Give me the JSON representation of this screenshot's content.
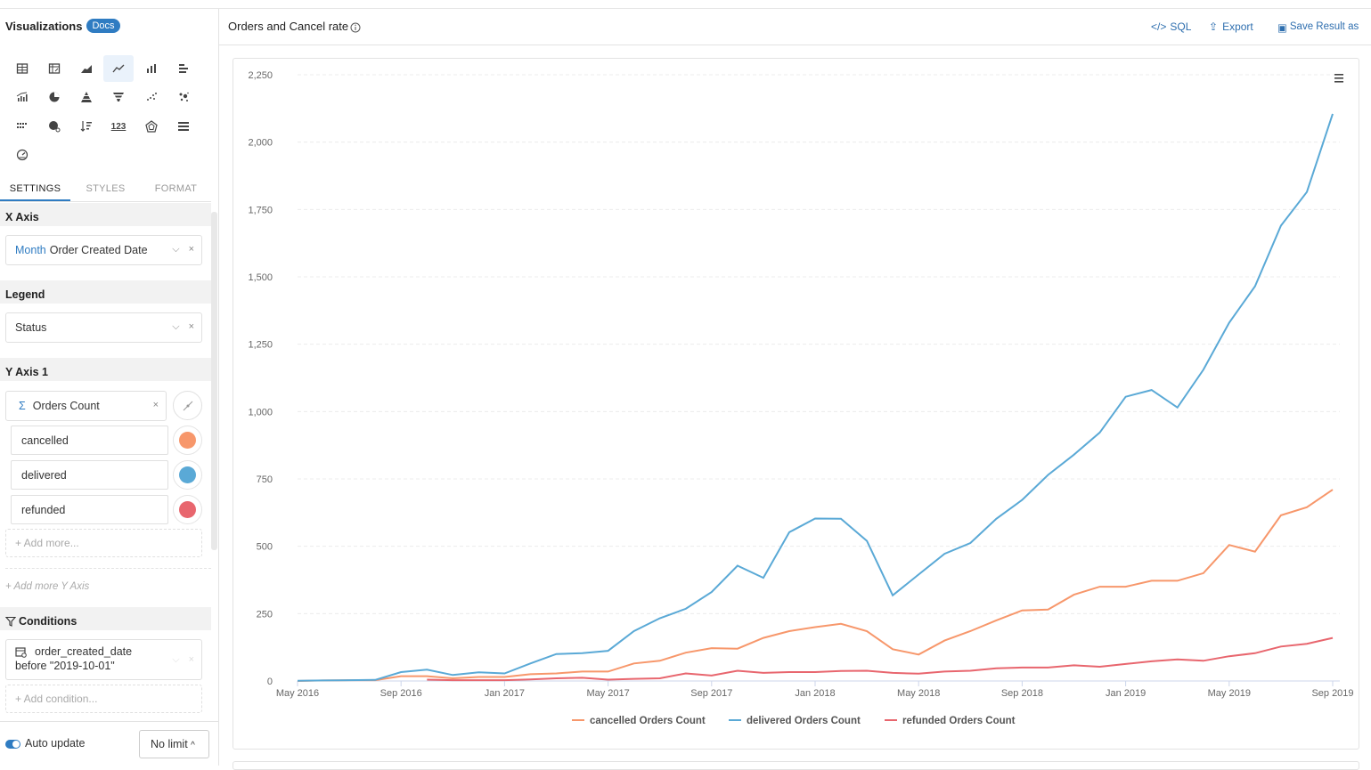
{
  "sidebar": {
    "title": "Visualizations",
    "docs_badge": "Docs",
    "viz_icons": [
      "table-icon",
      "pivot-table-icon",
      "area-chart-icon",
      "line-chart-icon",
      "column-chart-icon",
      "bar-chart-icon",
      "combo-chart-icon",
      "pie-chart-icon",
      "pyramid-icon",
      "funnel-icon",
      "scatter-icon",
      "bubble-icon",
      "heatmap-icon",
      "map-icon",
      "sorted-bar-icon",
      "number-icon",
      "radar-icon",
      "gantt-icon",
      "gauge-icon"
    ],
    "number_icon_text": "123",
    "tabs": [
      "SETTINGS",
      "STYLES",
      "FORMAT"
    ],
    "x_axis": {
      "label": "X Axis",
      "field_prefix": "Month",
      "field_name": "Order Created Date"
    },
    "legend": {
      "label": "Legend",
      "field_name": "Status"
    },
    "y_axis": {
      "label": "Y Axis 1",
      "sigma": "Σ",
      "field_name": "Orders Count",
      "series": [
        {
          "name": "cancelled",
          "color": "#f7976b"
        },
        {
          "name": "delivered",
          "color": "#5aa9d6"
        },
        {
          "name": "refunded",
          "color": "#e8666e"
        }
      ],
      "add_more": "+ Add more...",
      "add_more_y": "+ Add more Y Axis"
    },
    "conditions": {
      "label": "Conditions",
      "condition_line1": "order_created_date",
      "condition_line2": "before \"2019-10-01\"",
      "add_condition": "+ Add condition..."
    },
    "auto_update": "Auto update",
    "limit": "No limit"
  },
  "header": {
    "title": "Orders and Cancel rate",
    "sql_label": "SQL",
    "export_label": "Export",
    "save_label": "Save Result as"
  },
  "chart_data": {
    "type": "line",
    "title": "",
    "xlabel": "",
    "ylabel": "",
    "ylim": [
      0,
      2250
    ],
    "yticks": [
      "0",
      "250",
      "500",
      "750",
      "1,000",
      "1,250",
      "1,500",
      "1,750",
      "2,000",
      "2,250"
    ],
    "xtick_labels": [
      "May 2016",
      "Sep 2016",
      "Jan 2017",
      "May 2017",
      "Sep 2017",
      "Jan 2018",
      "May 2018",
      "Sep 2018",
      "Jan 2019",
      "May 2019",
      "Sep 2019"
    ],
    "grid": true,
    "legend_position": "bottom",
    "x": [
      "2016-05",
      "2016-06",
      "2016-07",
      "2016-08",
      "2016-09",
      "2016-10",
      "2016-11",
      "2016-12",
      "2017-01",
      "2017-02",
      "2017-03",
      "2017-04",
      "2017-05",
      "2017-06",
      "2017-07",
      "2017-08",
      "2017-09",
      "2017-10",
      "2017-11",
      "2017-12",
      "2018-01",
      "2018-02",
      "2018-03",
      "2018-04",
      "2018-05",
      "2018-06",
      "2018-07",
      "2018-08",
      "2018-09",
      "2018-10",
      "2018-11",
      "2018-12",
      "2019-01",
      "2019-02",
      "2019-03",
      "2019-04",
      "2019-05",
      "2019-06",
      "2019-07",
      "2019-08",
      "2019-09"
    ],
    "series": [
      {
        "name": "cancelled Orders Count",
        "color": "#f7976b",
        "values": [
          0,
          2,
          3,
          3,
          18,
          18,
          10,
          15,
          15,
          25,
          28,
          35,
          35,
          65,
          75,
          105,
          122,
          120,
          160,
          185,
          200,
          212,
          185,
          118,
          98,
          150,
          185,
          225,
          262,
          265,
          320,
          350,
          350,
          372,
          372,
          400,
          505,
          480,
          615,
          645,
          710
        ]
      },
      {
        "name": "delivered Orders Count",
        "color": "#5aa9d6",
        "values": [
          1,
          2,
          3,
          4,
          33,
          42,
          22,
          32,
          28,
          65,
          100,
          103,
          112,
          185,
          233,
          268,
          330,
          428,
          383,
          552,
          603,
          602,
          520,
          318,
          395,
          472,
          512,
          602,
          672,
          765,
          840,
          922,
          1055,
          1080,
          1015,
          1155,
          1330,
          1465,
          1690,
          1815,
          2105
        ]
      },
      {
        "name": "refunded Orders Count",
        "color": "#e8666e",
        "values": [
          null,
          null,
          null,
          null,
          null,
          5,
          3,
          3,
          3,
          6,
          10,
          12,
          5,
          8,
          10,
          28,
          20,
          38,
          30,
          33,
          33,
          37,
          38,
          30,
          27,
          35,
          38,
          47,
          50,
          50,
          58,
          53,
          63,
          73,
          80,
          75,
          92,
          103,
          128,
          138,
          160
        ]
      }
    ]
  }
}
